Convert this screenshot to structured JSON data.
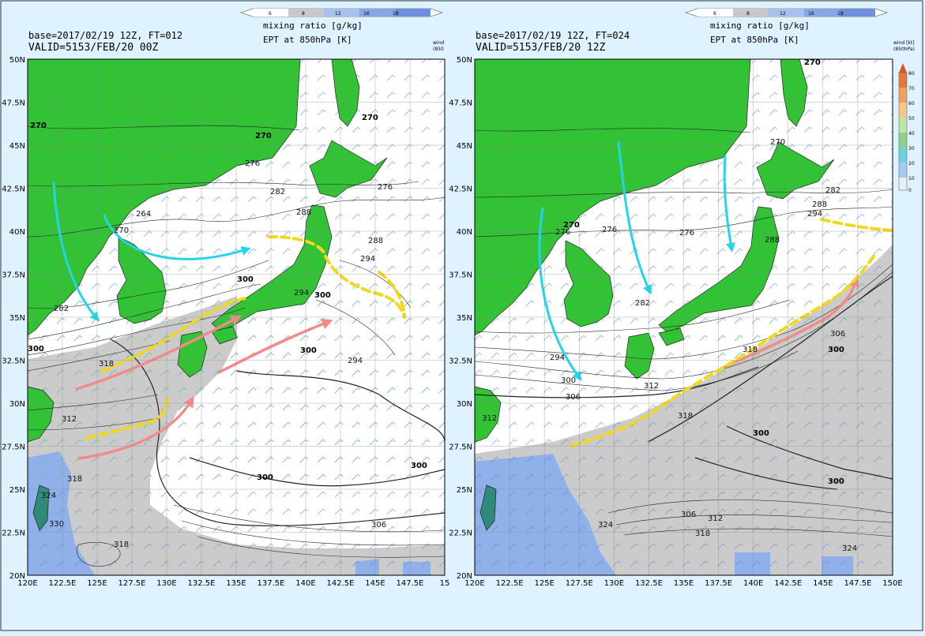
{
  "colorbar": {
    "title_line1": "mixing ratio [g/kg]",
    "title_line2": "EPT at 850hPa [K]",
    "ticks": [
      "6",
      "8",
      "12",
      "16",
      "18"
    ]
  },
  "wind_legend": {
    "left_label1": "wind",
    "left_label2": "(850",
    "right_label1": "wind [kt]",
    "right_label2": "(850hPa)",
    "ticks": [
      "80",
      "70",
      "60",
      "50",
      "40",
      "30",
      "20",
      "10",
      "0"
    ]
  },
  "panels": [
    {
      "base_text": "base=2017/02/19 12Z, FT=012",
      "valid_text": "VALID=5153/FEB/20 00Z",
      "lon_labels": [
        "120E",
        "122.5E",
        "125E",
        "127.5E",
        "130E",
        "132.5E",
        "135E",
        "137.5E",
        "140E",
        "142.5E",
        "145E",
        "147.5E",
        "15"
      ],
      "lat_labels": [
        "50N",
        "47.5N",
        "45N",
        "42.5N",
        "40N",
        "37.5N",
        "35N",
        "32.5N",
        "30N",
        "27.5N",
        "25N",
        "22.5N",
        "20N"
      ],
      "contour_labels": [
        "270",
        "270",
        "270",
        "276",
        "264",
        "270",
        "282",
        "282",
        "288",
        "276",
        "288",
        "294",
        "294",
        "300",
        "300",
        "300",
        "300",
        "300",
        "306",
        "312",
        "318",
        "318",
        "318",
        "324",
        "330",
        "300",
        "294"
      ]
    },
    {
      "base_text": "base=2017/02/19 12Z, FT=024",
      "valid_text": "VALID=5153/FEB/20 12Z",
      "lon_labels": [
        "120E",
        "122.5E",
        "125E",
        "127.5E",
        "130E",
        "132.5E",
        "135E",
        "137.5E",
        "140E",
        "142.5E",
        "145E",
        "147.5E",
        "150E"
      ],
      "lat_labels": [
        "50N",
        "47.5N",
        "45N",
        "42.5N",
        "40N",
        "37.5N",
        "35N",
        "32.5N",
        "30N",
        "27.5N",
        "25N",
        "22.5N",
        "20N"
      ],
      "contour_labels": [
        "270",
        "270",
        "276",
        "270",
        "276",
        "276",
        "282",
        "282",
        "288",
        "294",
        "288",
        "294",
        "300",
        "306",
        "312",
        "312",
        "318",
        "318",
        "300",
        "300",
        "306",
        "312",
        "318",
        "324",
        "324",
        "306",
        "300"
      ]
    }
  ],
  "colors": {
    "land": "#33c235",
    "ocean": "#ffffff",
    "moist_grey": "#cbcbcb",
    "moist_blue": "#8fb0e8",
    "dry_arrow": "#22d6e8",
    "moist_arrow": "#f28c8c",
    "front": "#f0d81e"
  }
}
